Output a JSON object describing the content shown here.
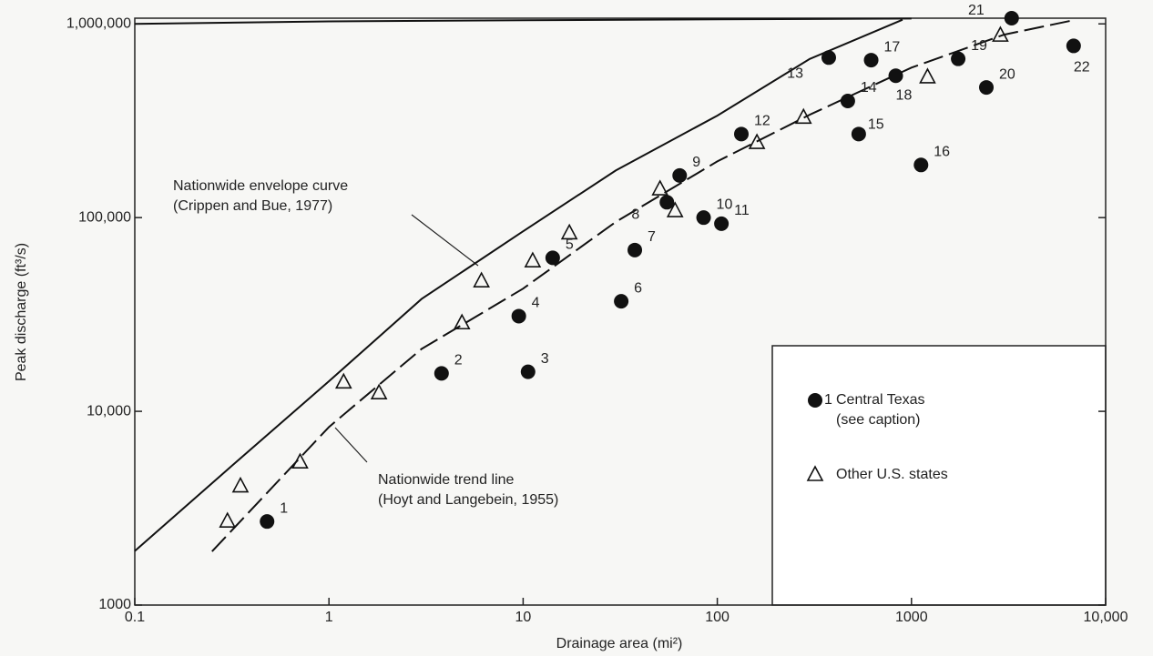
{
  "chart_data": {
    "type": "scatter",
    "log_x": true,
    "log_y": true,
    "x_label": "Drainage area (mi²)",
    "y_label": "Peak discharge (ft³/s)",
    "xlim": [
      0.1,
      10000
    ],
    "ylim": [
      1000,
      1070000
    ],
    "xticks": [
      0.1,
      1,
      10,
      100,
      1000,
      {
        "value": 10000,
        "label": "10,000"
      }
    ],
    "yticks": [
      1000,
      {
        "value": 10000,
        "label": "10,000"
      },
      {
        "value": 100000,
        "label": "100,000"
      },
      {
        "value": 1000000,
        "label": "1,000,000"
      }
    ],
    "series": [
      {
        "name": "Central Texas (see caption)",
        "legend_marker_label": "1",
        "marker": "filled-circle",
        "color": "#111111",
        "labels": [
          "1",
          "2",
          "3",
          "4",
          "5",
          "6",
          "7",
          "8",
          "9",
          "10",
          "11",
          "12",
          "13",
          "14",
          "15",
          "16",
          "17",
          "18",
          "19",
          "20",
          "21",
          "22"
        ],
        "x": [
          0.48,
          3.8,
          10.6,
          9.5,
          14.2,
          32,
          37.6,
          55,
          64,
          85,
          105,
          133,
          375,
          470,
          535,
          1120,
          620,
          830,
          1740,
          2430,
          3280,
          6840
        ],
        "values": [
          2700,
          15700,
          16000,
          31000,
          62000,
          37000,
          68000,
          120000,
          165000,
          100000,
          93000,
          270000,
          670000,
          400000,
          270000,
          187000,
          650000,
          540000,
          660000,
          470000,
          1070000,
          770000
        ]
      },
      {
        "name": "Other U.S. states",
        "marker": "open-triangle",
        "color": "#111111",
        "x": [
          0.3,
          0.35,
          0.71,
          1.19,
          1.81,
          4.84,
          6.1,
          11.2,
          17.3,
          50.7,
          60.6,
          160,
          278,
          1210,
          2870
        ],
        "values": [
          2700,
          4100,
          5450,
          14100,
          12400,
          28500,
          46900,
          59500,
          83000,
          140000,
          108000,
          243000,
          328000,
          530000,
          870000
        ]
      }
    ],
    "lines": [
      {
        "annotation": "Nationwide envelope curve\n(Crippen and Bue, 1977)",
        "style": "solid",
        "color": "#111111",
        "x": [
          0.1,
          0.3,
          1,
          3,
          10,
          30,
          100,
          300,
          900
        ],
        "values": [
          1900,
          5000,
          14300,
          38000,
          85000,
          175000,
          336000,
          660000,
          1050000
        ]
      },
      {
        "annotation": "Nationwide trend line\n(Hoyt and Langebein, 1955)",
        "style": "dashed",
        "color": "#111111",
        "x": [
          0.25,
          1,
          3,
          10,
          30,
          100,
          300,
          1000,
          3000,
          7000
        ],
        "values": [
          1890,
          8300,
          21000,
          43000,
          95000,
          195000,
          340000,
          595000,
          880000,
          1050000
        ]
      },
      {
        "style": "solid",
        "color": "#111111",
        "x": [
          0.1,
          1,
          10,
          100,
          1000
        ],
        "values": [
          1000000,
          1030000,
          1045000,
          1055000,
          1065000
        ]
      }
    ]
  }
}
